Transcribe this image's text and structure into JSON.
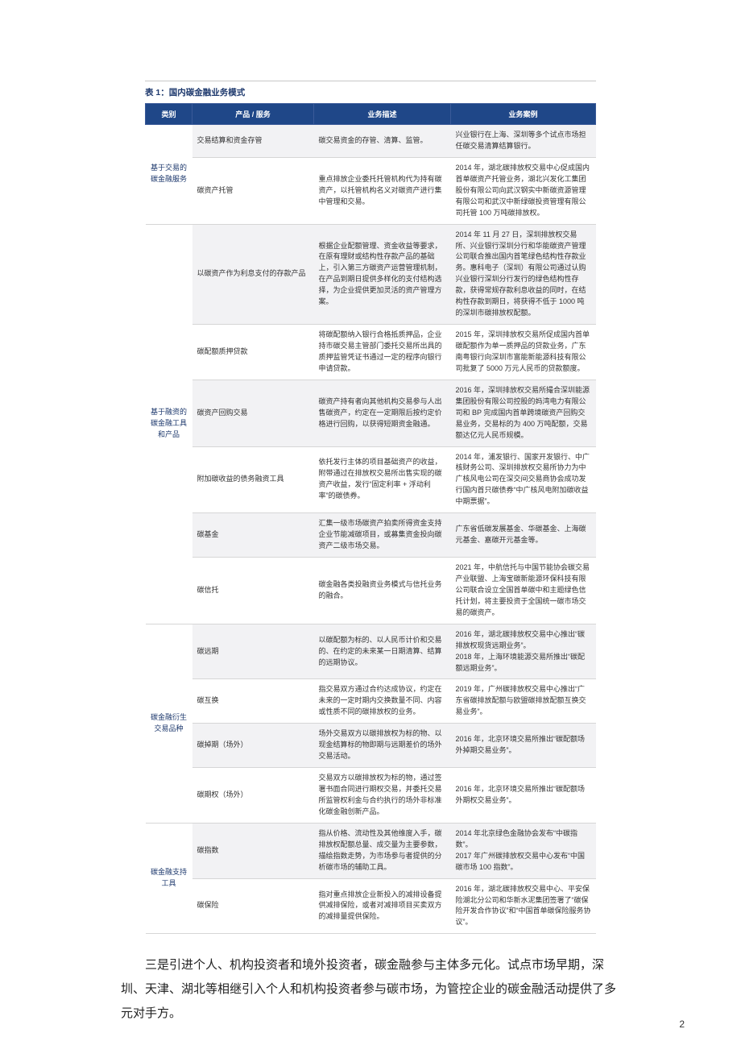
{
  "table_title": "表 1：国内碳金融业务模式",
  "columns": [
    "类别",
    "产品 / 服务",
    "业务描述",
    "业务案例"
  ],
  "col_widths": [
    "58px",
    "78px",
    "170px",
    "auto"
  ],
  "header_bg": "#1f4788",
  "header_fg": "#ffffff",
  "alt_row_bg": "#f2f2f4",
  "border_color": "#d6d6d6",
  "title_color": "#1f3a6e",
  "font_size_table": 9,
  "font_size_title": 10.5,
  "categories": [
    {
      "name": "基于交易的碳金融服务",
      "rows": [
        {
          "product": "交易结算和资金存管",
          "desc": "碳交易资金的存管、清算、监管。",
          "case": "兴业银行在上海、深圳等多个试点市场担任碳交易清算结算银行。"
        },
        {
          "product": "碳资产托管",
          "desc": "重点排放企业委托托管机构代为持有碳资产，以托管机构名义对碳资产进行集中管理和交易。",
          "case": "2014 年，湖北碳排放权交易中心促成国内首单碳资产托管业务，湖北兴发化工集团股份有限公司向武汉钢实中新碳资源管理有限公司和武汉中新绿碳投资管理有限公司托管 100 万吨碳排放权。"
        }
      ]
    },
    {
      "name": "基于融资的碳金融工具和产品",
      "rows": [
        {
          "product": "以碳资产作为利息支付的存款产品",
          "desc": "根据企业配额管理、资金收益等要求，在原有理财或结构性存款产品的基础上，引入第三方碳资产运营管理机制，在产品到期日提供多样化的支付结构选择，为企业提供更加灵活的资产管理方案。",
          "case": "2014 年 11 月 27 日，深圳排放权交易所、兴业银行深圳分行和华能碳资产管理公司联合推出国内首笔绿色结构性存款业务。惠科电子（深圳）有限公司通过认购兴业银行深圳分行发行的绿色结构性存款，获得常规存款利息收益的同时，在结构性存款到期日，将获得不低于 1000 吨的深圳市碳排放权配额。"
        },
        {
          "product": "碳配额质押贷款",
          "desc": "将碳配额纳入银行合格抵质押品，企业持市碳交易主管部门委托交易所出具的质押监管凭证书通过一定的程序向银行申请贷款。",
          "case": "2015 年，深圳排放权交易所促成国内首单碳配额作为单一质押品的贷款业务，广东南粤银行向深圳市富能新能源科技有限公司批复了 5000 万元人民币的贷款额度。"
        },
        {
          "product": "碳资产回购交易",
          "desc": "碳资产持有者向其他机构交易参与人出售碳资产，约定在一定期限后按约定价格进行回购，以获得短期资金融通。",
          "case": "2016 年，深圳排放权交易所撮合深圳能源集团股份有限公司控股的妈湾电力有限公司和 BP 完成国内首单跨境碳资产回购交易业务，交易标的为 400 万吨配额，交易额达亿元人民币规模。"
        },
        {
          "product": "附加碳收益的债务融资工具",
          "desc": "依托发行主体的项目基础资产的收益，附带通过在排放权交易所出售实现的碳资产收益，发行“固定利率 + 浮动利率”的碳债券。",
          "case": "2014 年，浦发银行、国家开发银行、中广核财务公司、深圳排放权交易所协力为中广核风电公司在深交间交易商协会成功发行国内首只碳债券“中广核风电附加碳收益中期票据”。"
        },
        {
          "product": "碳基金",
          "desc": "汇集一级市场碳资产拍卖所得资金支持企业节能减碳项目，或募集资金投向碳资产二级市场交易。",
          "case": "广东省低碳发展基金、华碳基金、上海碳元基金、嘉碳开元基金等。"
        },
        {
          "product": "碳信托",
          "desc": "碳金融各类投融资业务模式与信托业务的融合。",
          "case": "2021 年，中航信托与中国节能协会碳交易产业联盟、上海宝碳新能源环保科技有限公司联合设立全国首单碳中和主题绿色信托计划，将主要投资于全国统一碳市场交易的碳资产。"
        }
      ]
    },
    {
      "name": "碳金融衍生交易品种",
      "rows": [
        {
          "product": "碳远期",
          "desc": "以碳配额为标的、以人民币计价和交易的、在约定的未来某一日期清算、结算的远期协议。",
          "case": "2016 年，湖北碳排放权交易中心推出“碳排放权现货远期业务”。\n2018 年，上海环境能源交易所推出“碳配额远期业务”。"
        },
        {
          "product": "碳互换",
          "desc": "指交易双方通过合约达成协议，约定在未来的一定时期内交换数量不同、内容或性质不同的碳排放权的业务。",
          "case": "2019 年，广州碳排放权交易中心推出“广东省碳排放配额与欧盟碳排放配额互换交易业务”。"
        },
        {
          "product": "碳掉期（场外）",
          "desc": "场外交易双方以碳排放权为标的物、以现金结算标的物即期与远期差价的场外交易活动。",
          "case": "2016 年，北京环境交易所推出“碳配额场外掉期交易业务”。"
        },
        {
          "product": "碳期权（场外）",
          "desc": "交易双方以碳排放权为标的物，通过签署书面合同进行期权交易，并委托交易所监管权利金与合约执行的场外非标准化碳金融创新产品。",
          "case": "2016 年，北京环境交易所推出“碳配额场外期权交易业务”。"
        }
      ]
    },
    {
      "name": "碳金融支持工具",
      "rows": [
        {
          "product": "碳指数",
          "desc": "指从价格、流动性及其他维度入手，碳排放权配额总量、成交量为主要参数，描绘指数走势，为市场参与者提供的分析碳市场的辅助工具。",
          "case": "2014 年北京绿色金融协会发布“中碳指数”。\n2017 年广州碳排放权交易中心发布“中国碳市场 100 指数”。"
        },
        {
          "product": "碳保险",
          "desc": "指对重点排放企业新投入的减排设备提供减排保险，或者对减排项目买卖双方的减排量提供保险。",
          "case": "2016 年，湖北碳排放权交易中心、平安保险湖北分公司和华新水泥集团签署了“碳保险开发合作协议”和“中国首单碳保险服务协议”。"
        }
      ]
    }
  ],
  "paragraph": "三是引进个人、机构投资者和境外投资者，碳金融参与主体多元化。试点市场早期，深圳、天津、湖北等相继引入个人和机构投资者参与碳市场，为管控企业的碳金融活动提供了多元对手方。",
  "page_number": "2"
}
